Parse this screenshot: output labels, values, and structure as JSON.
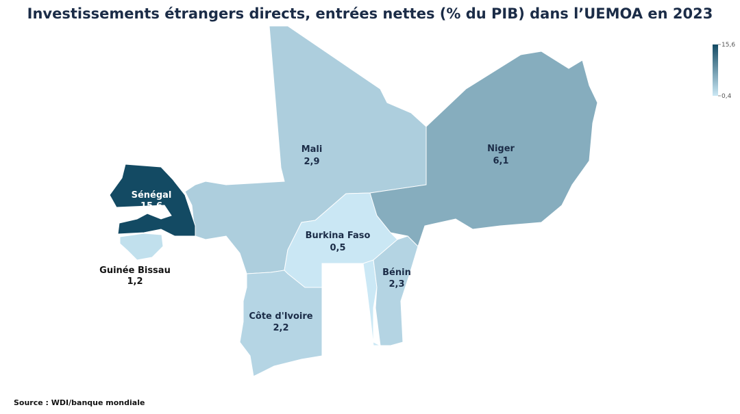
{
  "chart_data": {
    "type": "choropleth",
    "title": "Investissements étrangers directs, entrées nettes (% du PIB) dans l’UEMOA en 2023",
    "categories": [
      "Mali",
      "Niger",
      "Sénégal",
      "Guinée Bissau",
      "Burkina Faso",
      "Bénin",
      "Côte d'Ivoire"
    ],
    "values": [
      2.9,
      6.1,
      15.6,
      1.2,
      0.5,
      2.3,
      2.2
    ],
    "value_labels": [
      "2,9",
      "6,1",
      "15,6",
      "1,2",
      "0,5",
      "2,3",
      "2,2"
    ],
    "colorscale": [
      "#cbe8f5",
      "#134a63"
    ],
    "colorbar_ticks": [
      {
        "value": 15.6,
        "label": "15,6"
      },
      {
        "value": 0.4,
        "label": "0,4"
      }
    ],
    "source": "Source : WDI/banque mondiale"
  }
}
